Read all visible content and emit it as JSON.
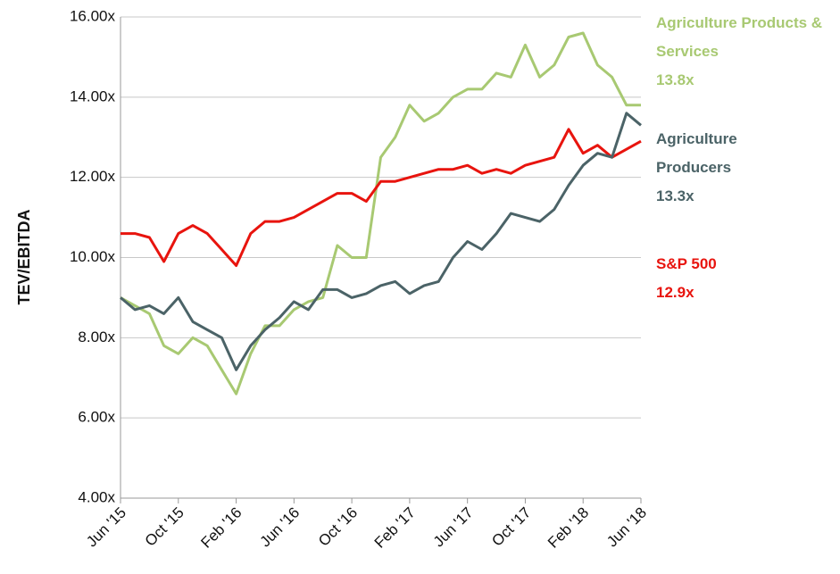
{
  "chart_data": {
    "type": "line",
    "y_label": "TEV/EBITDA",
    "categories": [
      "Jun '15",
      null,
      null,
      null,
      "Oct '15",
      null,
      null,
      null,
      "Feb '16",
      null,
      null,
      null,
      "Jun '16",
      null,
      null,
      null,
      "Oct '16",
      null,
      null,
      null,
      "Feb '17",
      null,
      null,
      null,
      "Jun '17",
      null,
      null,
      null,
      "Oct '17",
      null,
      null,
      null,
      "Feb '18",
      null,
      null,
      null,
      "Jun '18"
    ],
    "series": [
      {
        "name": "Agriculture Products & Services",
        "color": "#a8c972",
        "end_label": "13.8x",
        "values": [
          9.0,
          8.8,
          8.6,
          7.8,
          7.6,
          8.0,
          7.8,
          7.2,
          6.6,
          7.6,
          8.3,
          8.3,
          8.7,
          8.9,
          9.0,
          10.3,
          10.0,
          10.0,
          12.5,
          13.0,
          13.8,
          13.4,
          13.6,
          14.0,
          14.2,
          14.2,
          14.6,
          14.5,
          15.3,
          14.5,
          14.8,
          15.5,
          15.6,
          14.8,
          14.5,
          13.8,
          13.8
        ]
      },
      {
        "name": "Agriculture Producers",
        "color": "#4b6367",
        "end_label": "13.3x",
        "values": [
          9.0,
          8.7,
          8.8,
          8.6,
          9.0,
          8.4,
          8.2,
          8.0,
          7.2,
          7.8,
          8.2,
          8.5,
          8.9,
          8.7,
          9.2,
          9.2,
          9.0,
          9.1,
          9.3,
          9.4,
          9.1,
          9.3,
          9.4,
          10.0,
          10.4,
          10.2,
          10.6,
          11.1,
          11.0,
          10.9,
          11.2,
          11.8,
          12.3,
          12.6,
          12.5,
          13.6,
          13.3
        ]
      },
      {
        "name": "S&P 500",
        "color": "#e8140e",
        "end_label": "12.9x",
        "values": [
          10.6,
          10.6,
          10.5,
          9.9,
          10.6,
          10.8,
          10.6,
          10.2,
          9.8,
          10.6,
          10.9,
          10.9,
          11.0,
          11.2,
          11.4,
          11.6,
          11.6,
          11.4,
          11.9,
          11.9,
          12.0,
          12.1,
          12.2,
          12.2,
          12.3,
          12.1,
          12.2,
          12.1,
          12.3,
          12.4,
          12.5,
          13.2,
          12.6,
          12.8,
          12.5,
          12.7,
          12.9
        ]
      }
    ],
    "ylim": [
      4,
      16
    ],
    "yticks": [
      {
        "value": 4,
        "label": "4.00x"
      },
      {
        "value": 6,
        "label": "6.00x"
      },
      {
        "value": 8,
        "label": "8.00x"
      },
      {
        "value": 10,
        "label": "10.00x"
      },
      {
        "value": 12,
        "label": "12.00x"
      },
      {
        "value": 14,
        "label": "14.00x"
      },
      {
        "value": 16,
        "label": "16.00x"
      }
    ],
    "grid": true
  }
}
